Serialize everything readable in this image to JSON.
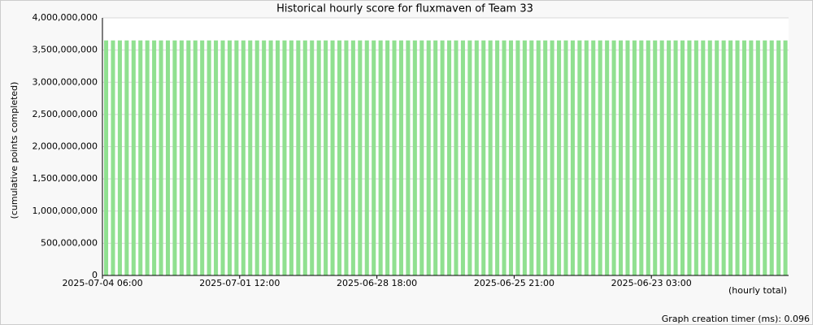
{
  "chart_data": {
    "type": "bar",
    "title": "Historical hourly score for fluxmaven of Team 33",
    "y_label": "(cumulative points completed)",
    "x_label": "(hourly total)",
    "note": "Graph creation timer (ms): 0.096",
    "color": "#90e090",
    "grid": true,
    "categories": [
      "2025-07-04 06:00",
      null,
      null,
      null,
      null,
      null,
      null,
      null,
      null,
      null,
      null,
      null,
      null,
      null,
      null,
      null,
      null,
      null,
      null,
      null,
      "2025-07-01 12:00",
      null,
      null,
      null,
      null,
      null,
      null,
      null,
      null,
      null,
      null,
      null,
      null,
      null,
      null,
      null,
      null,
      null,
      null,
      null,
      "2025-06-28 18:00",
      null,
      null,
      null,
      null,
      null,
      null,
      null,
      null,
      null,
      null,
      null,
      null,
      null,
      null,
      null,
      null,
      null,
      null,
      null,
      "2025-06-25 21:00",
      null,
      null,
      null,
      null,
      null,
      null,
      null,
      null,
      null,
      null,
      null,
      null,
      null,
      null,
      null,
      null,
      null,
      null,
      null,
      "2025-06-23 03:00",
      null,
      null,
      null,
      null,
      null,
      null,
      null,
      null,
      null,
      null,
      null,
      null,
      null,
      null,
      null,
      null,
      null,
      null,
      null
    ],
    "values": [
      3650000000,
      3650000000,
      3650000000,
      3650000000,
      3650000000,
      3650000000,
      3650000000,
      3650000000,
      3650000000,
      3650000000,
      3650000000,
      3650000000,
      3650000000,
      3650000000,
      3650000000,
      3650000000,
      3650000000,
      3650000000,
      3650000000,
      3650000000,
      3650000000,
      3650000000,
      3650000000,
      3650000000,
      3650000000,
      3650000000,
      3650000000,
      3650000000,
      3650000000,
      3650000000,
      3650000000,
      3650000000,
      3650000000,
      3650000000,
      3650000000,
      3650000000,
      3650000000,
      3650000000,
      3650000000,
      3650000000,
      3650000000,
      3650000000,
      3650000000,
      3650000000,
      3650000000,
      3650000000,
      3650000000,
      3650000000,
      3650000000,
      3650000000,
      3650000000,
      3650000000,
      3650000000,
      3650000000,
      3650000000,
      3650000000,
      3650000000,
      3650000000,
      3650000000,
      3650000000,
      3650000000,
      3650000000,
      3650000000,
      3650000000,
      3650000000,
      3650000000,
      3650000000,
      3650000000,
      3650000000,
      3650000000,
      3650000000,
      3650000000,
      3650000000,
      3650000000,
      3650000000,
      3650000000,
      3650000000,
      3650000000,
      3650000000,
      3650000000,
      3650000000,
      3650000000,
      3650000000,
      3650000000,
      3650000000,
      3650000000,
      3650000000,
      3650000000,
      3650000000,
      3650000000,
      3650000000,
      3650000000,
      3650000000,
      3650000000,
      3650000000,
      3650000000,
      3650000000,
      3650000000,
      3650000000,
      3650000000
    ],
    "ylim": [
      0,
      4000000000
    ],
    "yticks": [
      0,
      {
        "value": 500000000,
        "label": "500,000,000"
      },
      {
        "value": 1000000000,
        "label": "1,000,000,000"
      },
      {
        "value": 1500000000,
        "label": "1,500,000,000"
      },
      {
        "value": 2000000000,
        "label": "2,000,000,000"
      },
      {
        "value": 2500000000,
        "label": "2,500,000,000"
      },
      {
        "value": 3000000000,
        "label": "3,000,000,000"
      },
      {
        "value": 3500000000,
        "label": "3,500,000,000"
      },
      {
        "value": 4000000000,
        "label": "4,000,000,000"
      }
    ]
  }
}
